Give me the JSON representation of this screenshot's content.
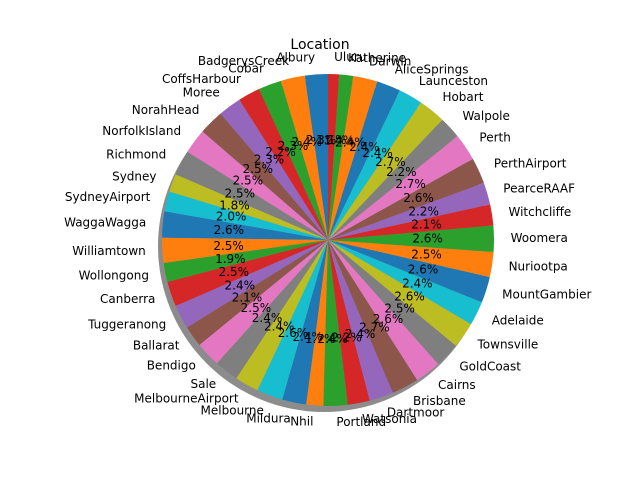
{
  "chart_data": {
    "type": "pie",
    "title": "Location",
    "shadow": true,
    "start_angle_deg": 90,
    "direction": "counterclockwise",
    "palette": [
      "#1f77b4",
      "#ff7f0e",
      "#2ca02c",
      "#d62728",
      "#9467bd",
      "#8c564b",
      "#e377c2",
      "#7f7f7f",
      "#bcbd22",
      "#17becf"
    ],
    "categories": [
      "Albury",
      "BadgerysCreek",
      "Cobar",
      "CoffsHarbour",
      "Moree",
      "NorahHead",
      "NorfolkIsland",
      "Richmond",
      "Sydney",
      "SydneyAirport",
      "WaggaWagga",
      "Williamtown",
      "Wollongong",
      "Canberra",
      "Tuggeranong",
      "Ballarat",
      "Bendigo",
      "Sale",
      "MelbourneAirport",
      "Melbourne",
      "Mildura",
      "Nhil",
      "Portland",
      "Watsonia",
      "Dartmoor",
      "Brisbane",
      "Cairns",
      "GoldCoast",
      "Townsville",
      "Adelaide",
      "MountGambier",
      "Nuriootpa",
      "Woomera",
      "Witchcliffe",
      "PearceRAAF",
      "PerthAirport",
      "Perth",
      "Walpole",
      "Hobart",
      "Launceston",
      "AliceSprings",
      "Darwin",
      "Katherine",
      "Uluru"
    ],
    "values": [
      2.3,
      2.4,
      2.3,
      2.2,
      2.3,
      2.5,
      2.5,
      2.5,
      1.8,
      2.0,
      2.6,
      2.5,
      1.9,
      2.5,
      2.4,
      2.1,
      2.5,
      2.4,
      2.4,
      2.6,
      2.4,
      1.7,
      2.4,
      2.2,
      2.4,
      2.7,
      2.6,
      2.5,
      2.6,
      2.4,
      2.6,
      2.5,
      2.6,
      2.1,
      2.2,
      2.6,
      2.7,
      2.2,
      2.7,
      2.4,
      2.4,
      2.4,
      1.4,
      1.1
    ],
    "pct_labels": [
      "2.3%",
      "2.4%",
      "2.3%",
      "2.2%",
      "2.3%",
      "2.5%",
      "2.5%",
      "2.5%",
      "1.8%",
      "2.0%",
      "2.6%",
      "2.5%",
      "1.9%",
      "2.5%",
      "2.4%",
      "2.1%",
      "2.5%",
      "2.4%",
      "2.4%",
      "2.6%",
      "2.4%",
      "1.7%",
      "2.4%",
      "2.2%",
      "2.4%",
      "2.7%",
      "2.6%",
      "2.5%",
      "2.6%",
      "2.4%",
      "2.6%",
      "2.5%",
      "2.6%",
      "2.1%",
      "2.2%",
      "2.6%",
      "2.7%",
      "2.2%",
      "2.7%",
      "2.4%",
      "2.4%",
      "2.4%",
      "1.4%",
      "1.1%"
    ]
  }
}
